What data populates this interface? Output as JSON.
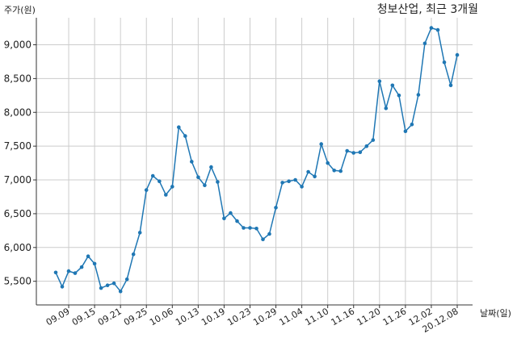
{
  "chart_data": {
    "type": "line",
    "title": "청보산업, 최근 3개월",
    "ylabel": "주가(원)",
    "xlabel": "날짜(일)",
    "ylim": [
      5150,
      9400
    ],
    "yticks": [
      5500,
      6000,
      6500,
      7000,
      7500,
      8000,
      8500,
      9000
    ],
    "ytick_labels": [
      "5,500",
      "6,000",
      "6,500",
      "7,000",
      "7,500",
      "8,000",
      "8,500",
      "9,000"
    ],
    "xticks": [
      {
        "label": "09.09",
        "index": 2
      },
      {
        "label": "09.15",
        "index": 6
      },
      {
        "label": "09.21",
        "index": 10
      },
      {
        "label": "09.25",
        "index": 14
      },
      {
        "label": "10.06",
        "index": 18
      },
      {
        "label": "10.13",
        "index": 22
      },
      {
        "label": "10.19",
        "index": 26
      },
      {
        "label": "10.23",
        "index": 30
      },
      {
        "label": "10.29",
        "index": 34
      },
      {
        "label": "11.04",
        "index": 38
      },
      {
        "label": "11.10",
        "index": 42
      },
      {
        "label": "11.16",
        "index": 46
      },
      {
        "label": "11.20",
        "index": 50
      },
      {
        "label": "11.26",
        "index": 54
      },
      {
        "label": "12.02",
        "index": 58
      },
      {
        "label": "20.12.08",
        "index": 62
      }
    ],
    "x_count": 63,
    "grid": true,
    "series": [
      {
        "color": "#1f77b4",
        "values": [
          5630,
          5420,
          5650,
          5620,
          5710,
          5870,
          5760,
          5400,
          5440,
          5470,
          5350,
          5530,
          5900,
          6220,
          6850,
          7060,
          6980,
          6780,
          6900,
          7780,
          7650,
          7270,
          7040,
          6920,
          7190,
          6970,
          6430,
          6510,
          6390,
          6290,
          6290,
          6280,
          6120,
          6200,
          6590,
          6960,
          6980,
          7000,
          6900,
          7120,
          7050,
          7530,
          7250,
          7140,
          7130,
          7430,
          7400,
          7410,
          7500,
          7590,
          8460,
          8060,
          8400,
          8250,
          7720,
          7820,
          8260,
          9020,
          9250,
          9220,
          8740,
          8400,
          8850
        ]
      }
    ]
  }
}
